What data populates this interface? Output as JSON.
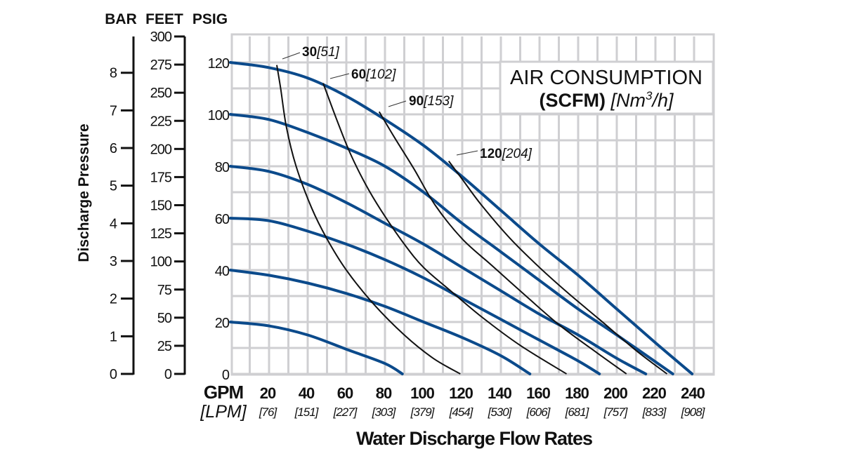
{
  "chart_data": {
    "type": "line",
    "title": "",
    "xlabel": "Water Discharge Flow Rates",
    "ylabel": "Discharge Pressure",
    "x_unit_label": "GPM",
    "x_unit_label_alt": "[LPM]",
    "xlim": [
      0,
      250
    ],
    "ylim": [
      0,
      130
    ],
    "grid": true,
    "x_ticks": [
      20,
      40,
      60,
      80,
      100,
      120,
      140,
      160,
      180,
      200,
      220,
      240
    ],
    "x_ticks_alt": [
      "[76]",
      "[151]",
      "[227]",
      "[303]",
      "[379]",
      "[454]",
      "[530]",
      "[606]",
      "[681]",
      "[757]",
      "[833]",
      "[908]"
    ],
    "y_axes": {
      "bar": {
        "label": "BAR",
        "ticks": [
          0,
          1,
          2,
          3,
          4,
          5,
          6,
          7,
          8
        ]
      },
      "feet": {
        "label": "FEET",
        "ticks": [
          0,
          25,
          50,
          75,
          100,
          125,
          150,
          175,
          200,
          225,
          250,
          275,
          300
        ]
      },
      "psig": {
        "label": "PSIG",
        "ticks": [
          0,
          20,
          40,
          60,
          80,
          100,
          120
        ]
      }
    },
    "legend": {
      "title_line1": "AIR CONSUMPTION",
      "title_line2_bold": "(SCFM)",
      "title_line2_italic": "[Nm",
      "title_line2_sup": "3",
      "title_line2_end": "/h]",
      "placement": "top-right"
    },
    "colors": {
      "pressure_curves": "#0b4a8b",
      "air_curves": "#111111",
      "grid": "#cfcfd2"
    },
    "pressure_curves": [
      {
        "inlet_psig": 120,
        "points": [
          [
            0,
            120
          ],
          [
            20,
            118
          ],
          [
            40,
            114
          ],
          [
            60,
            107
          ],
          [
            80,
            98
          ],
          [
            100,
            88
          ],
          [
            120,
            76
          ],
          [
            140,
            63
          ],
          [
            160,
            50
          ],
          [
            180,
            38
          ],
          [
            200,
            25
          ],
          [
            220,
            12
          ],
          [
            239,
            0
          ]
        ]
      },
      {
        "inlet_psig": 100,
        "points": [
          [
            0,
            100
          ],
          [
            20,
            98
          ],
          [
            40,
            93
          ],
          [
            60,
            87
          ],
          [
            80,
            80
          ],
          [
            100,
            70
          ],
          [
            120,
            58
          ],
          [
            140,
            47
          ],
          [
            160,
            36
          ],
          [
            180,
            25
          ],
          [
            200,
            15
          ],
          [
            229,
            0
          ]
        ]
      },
      {
        "inlet_psig": 80,
        "points": [
          [
            0,
            80
          ],
          [
            20,
            78
          ],
          [
            40,
            73
          ],
          [
            60,
            66
          ],
          [
            80,
            58
          ],
          [
            100,
            50
          ],
          [
            120,
            41
          ],
          [
            140,
            32
          ],
          [
            160,
            23
          ],
          [
            180,
            15
          ],
          [
            200,
            6
          ],
          [
            215,
            0
          ]
        ]
      },
      {
        "inlet_psig": 60,
        "points": [
          [
            0,
            60
          ],
          [
            20,
            59
          ],
          [
            40,
            55
          ],
          [
            60,
            50
          ],
          [
            80,
            44
          ],
          [
            100,
            37
          ],
          [
            120,
            29
          ],
          [
            140,
            21
          ],
          [
            160,
            13
          ],
          [
            180,
            5
          ],
          [
            191,
            0
          ]
        ]
      },
      {
        "inlet_psig": 40,
        "points": [
          [
            0,
            40
          ],
          [
            20,
            38
          ],
          [
            40,
            35
          ],
          [
            60,
            31
          ],
          [
            80,
            26
          ],
          [
            100,
            20
          ],
          [
            120,
            14
          ],
          [
            140,
            7
          ],
          [
            155,
            0
          ]
        ]
      },
      {
        "inlet_psig": 20,
        "points": [
          [
            0,
            20
          ],
          [
            20,
            18.5
          ],
          [
            40,
            15
          ],
          [
            60,
            9.5
          ],
          [
            80,
            4
          ],
          [
            89,
            0
          ]
        ]
      }
    ],
    "air_curves": [
      {
        "scfm": "30",
        "nm3h": "[51]",
        "points": [
          [
            24,
            119
          ],
          [
            26,
            110
          ],
          [
            29,
            95
          ],
          [
            34,
            80
          ],
          [
            42,
            64
          ],
          [
            50,
            52
          ],
          [
            60,
            40
          ],
          [
            74,
            27
          ],
          [
            90,
            15
          ],
          [
            105,
            6
          ],
          [
            119,
            0
          ]
        ]
      },
      {
        "scfm": "60",
        "nm3h": "[102]",
        "points": [
          [
            48,
            112
          ],
          [
            55,
            98
          ],
          [
            62,
            85
          ],
          [
            70,
            73
          ],
          [
            78,
            63
          ],
          [
            90,
            50
          ],
          [
            100,
            41
          ],
          [
            114,
            32
          ],
          [
            130,
            22
          ],
          [
            150,
            11
          ],
          [
            174,
            0
          ]
        ]
      },
      {
        "scfm": "90",
        "nm3h": "[153]",
        "points": [
          [
            77,
            101
          ],
          [
            85,
            91
          ],
          [
            95,
            79
          ],
          [
            106,
            65
          ],
          [
            120,
            52
          ],
          [
            135,
            42
          ],
          [
            150,
            32
          ],
          [
            170,
            19
          ],
          [
            190,
            8
          ],
          [
            205,
            0
          ]
        ]
      },
      {
        "scfm": "120",
        "nm3h": "[204]",
        "points": [
          [
            113,
            82
          ],
          [
            120,
            75
          ],
          [
            130,
            65
          ],
          [
            145,
            52
          ],
          [
            160,
            41
          ],
          [
            175,
            31
          ],
          [
            191,
            21
          ],
          [
            210,
            9
          ],
          [
            226,
            0
          ]
        ]
      }
    ]
  }
}
